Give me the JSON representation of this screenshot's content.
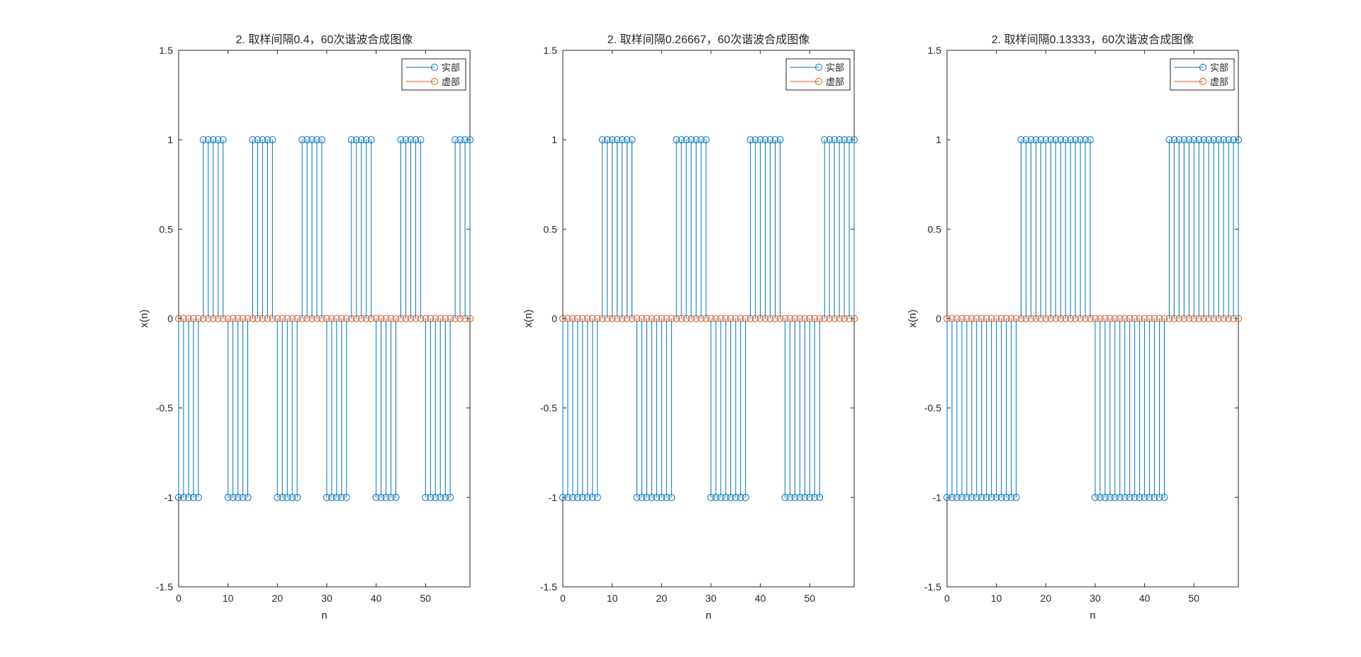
{
  "colors": {
    "real": "#0072BD",
    "imag": "#D95319",
    "axis": "#262626"
  },
  "chart_data": [
    {
      "type": "stem",
      "title": "2. 取样间隔0.4，60次谐波合成图像",
      "xlabel": "n",
      "ylabel": "x(n)",
      "xlim": [
        0,
        59
      ],
      "ylim": [
        -1.5,
        1.5
      ],
      "xticks": [
        0,
        10,
        20,
        30,
        40,
        50
      ],
      "yticks": [
        -1.5,
        -1,
        -0.5,
        0,
        0.5,
        1,
        1.5
      ],
      "legend": {
        "position": "top-right",
        "entries": [
          "实部",
          "虚部"
        ]
      },
      "x": [
        0,
        1,
        2,
        3,
        4,
        5,
        6,
        7,
        8,
        9,
        10,
        11,
        12,
        13,
        14,
        15,
        16,
        17,
        18,
        19,
        20,
        21,
        22,
        23,
        24,
        25,
        26,
        27,
        28,
        29,
        30,
        31,
        32,
        33,
        34,
        35,
        36,
        37,
        38,
        39,
        40,
        41,
        42,
        43,
        44,
        45,
        46,
        47,
        48,
        49,
        50,
        51,
        52,
        53,
        54,
        55,
        56,
        57,
        58,
        59
      ],
      "series": [
        {
          "name": "实部",
          "values": [
            -1,
            -1,
            -1,
            -1,
            -1,
            1,
            1,
            1,
            1,
            1,
            -1,
            -1,
            -1,
            -1,
            -1,
            1,
            1,
            1,
            1,
            1,
            -1,
            -1,
            -1,
            -1,
            -1,
            1,
            1,
            1,
            1,
            1,
            -1,
            -1,
            -1,
            -1,
            -1,
            1,
            1,
            1,
            1,
            1,
            -1,
            -1,
            -1,
            -1,
            -1,
            1,
            1,
            1,
            1,
            1,
            -1,
            -1,
            -1,
            -1,
            -1,
            -1,
            1,
            1,
            1,
            1
          ]
        },
        {
          "name": "虚部",
          "values": [
            0,
            0,
            0,
            0,
            0,
            0,
            0,
            0,
            0,
            0,
            0,
            0,
            0,
            0,
            0,
            0,
            0,
            0,
            0,
            0,
            0,
            0,
            0,
            0,
            0,
            0,
            0,
            0,
            0,
            0,
            0,
            0,
            0,
            0,
            0,
            0,
            0,
            0,
            0,
            0,
            0,
            0,
            0,
            0,
            0,
            0,
            0,
            0,
            0,
            0,
            0,
            0,
            0,
            0,
            0,
            0,
            0,
            0,
            0,
            0
          ]
        }
      ]
    },
    {
      "type": "stem",
      "title": "2. 取样间隔0.26667，60次谐波合成图像",
      "xlabel": "n",
      "ylabel": "x(n)",
      "xlim": [
        0,
        59
      ],
      "ylim": [
        -1.5,
        1.5
      ],
      "xticks": [
        0,
        10,
        20,
        30,
        40,
        50
      ],
      "yticks": [
        -1.5,
        -1,
        -0.5,
        0,
        0.5,
        1,
        1.5
      ],
      "legend": {
        "position": "top-right",
        "entries": [
          "实部",
          "虚部"
        ]
      },
      "x": [
        0,
        1,
        2,
        3,
        4,
        5,
        6,
        7,
        8,
        9,
        10,
        11,
        12,
        13,
        14,
        15,
        16,
        17,
        18,
        19,
        20,
        21,
        22,
        23,
        24,
        25,
        26,
        27,
        28,
        29,
        30,
        31,
        32,
        33,
        34,
        35,
        36,
        37,
        38,
        39,
        40,
        41,
        42,
        43,
        44,
        45,
        46,
        47,
        48,
        49,
        50,
        51,
        52,
        53,
        54,
        55,
        56,
        57,
        58,
        59
      ],
      "series": [
        {
          "name": "实部",
          "values": [
            -1,
            -1,
            -1,
            -1,
            -1,
            -1,
            -1,
            -1,
            1,
            1,
            1,
            1,
            1,
            1,
            1,
            -1,
            -1,
            -1,
            -1,
            -1,
            -1,
            -1,
            -1,
            1,
            1,
            1,
            1,
            1,
            1,
            1,
            -1,
            -1,
            -1,
            -1,
            -1,
            -1,
            -1,
            -1,
            1,
            1,
            1,
            1,
            1,
            1,
            1,
            -1,
            -1,
            -1,
            -1,
            -1,
            -1,
            -1,
            -1,
            1,
            1,
            1,
            1,
            1,
            1,
            1
          ]
        },
        {
          "name": "虚部",
          "values": [
            0,
            0,
            0,
            0,
            0,
            0,
            0,
            0,
            0,
            0,
            0,
            0,
            0,
            0,
            0,
            0,
            0,
            0,
            0,
            0,
            0,
            0,
            0,
            0,
            0,
            0,
            0,
            0,
            0,
            0,
            0,
            0,
            0,
            0,
            0,
            0,
            0,
            0,
            0,
            0,
            0,
            0,
            0,
            0,
            0,
            0,
            0,
            0,
            0,
            0,
            0,
            0,
            0,
            0,
            0,
            0,
            0,
            0,
            0,
            0
          ]
        }
      ]
    },
    {
      "type": "stem",
      "title": "2. 取样间隔0.13333，60次谐波合成图像",
      "xlabel": "n",
      "ylabel": "x(n)",
      "xlim": [
        0,
        59
      ],
      "ylim": [
        -1.5,
        1.5
      ],
      "xticks": [
        0,
        10,
        20,
        30,
        40,
        50
      ],
      "yticks": [
        -1.5,
        -1,
        -0.5,
        0,
        0.5,
        1,
        1.5
      ],
      "legend": {
        "position": "top-right",
        "entries": [
          "实部",
          "虚部"
        ]
      },
      "x": [
        0,
        1,
        2,
        3,
        4,
        5,
        6,
        7,
        8,
        9,
        10,
        11,
        12,
        13,
        14,
        15,
        16,
        17,
        18,
        19,
        20,
        21,
        22,
        23,
        24,
        25,
        26,
        27,
        28,
        29,
        30,
        31,
        32,
        33,
        34,
        35,
        36,
        37,
        38,
        39,
        40,
        41,
        42,
        43,
        44,
        45,
        46,
        47,
        48,
        49,
        50,
        51,
        52,
        53,
        54,
        55,
        56,
        57,
        58,
        59
      ],
      "series": [
        {
          "name": "实部",
          "values": [
            -1,
            -1,
            -1,
            -1,
            -1,
            -1,
            -1,
            -1,
            -1,
            -1,
            -1,
            -1,
            -1,
            -1,
            -1,
            1,
            1,
            1,
            1,
            1,
            1,
            1,
            1,
            1,
            1,
            1,
            1,
            1,
            1,
            1,
            -1,
            -1,
            -1,
            -1,
            -1,
            -1,
            -1,
            -1,
            -1,
            -1,
            -1,
            -1,
            -1,
            -1,
            -1,
            1,
            1,
            1,
            1,
            1,
            1,
            1,
            1,
            1,
            1,
            1,
            1,
            1,
            1,
            1
          ]
        },
        {
          "name": "虚部",
          "values": [
            0,
            0,
            0,
            0,
            0,
            0,
            0,
            0,
            0,
            0,
            0,
            0,
            0,
            0,
            0,
            0,
            0,
            0,
            0,
            0,
            0,
            0,
            0,
            0,
            0,
            0,
            0,
            0,
            0,
            0,
            0,
            0,
            0,
            0,
            0,
            0,
            0,
            0,
            0,
            0,
            0,
            0,
            0,
            0,
            0,
            0,
            0,
            0,
            0,
            0,
            0,
            0,
            0,
            0,
            0,
            0,
            0,
            0,
            0,
            0
          ]
        }
      ]
    }
  ]
}
